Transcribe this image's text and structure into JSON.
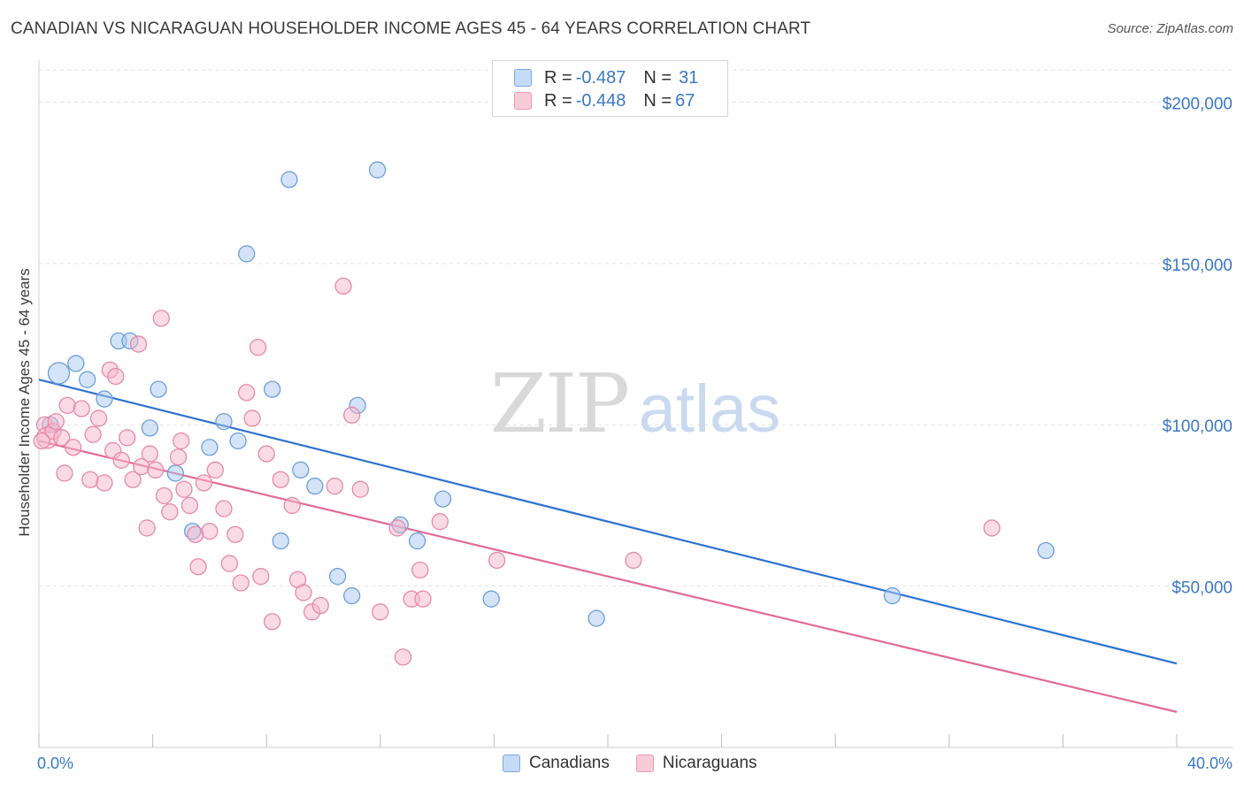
{
  "title": "CANADIAN VS NICARAGUAN HOUSEHOLDER INCOME AGES 45 - 64 YEARS CORRELATION CHART",
  "source": "Source: ZipAtlas.com",
  "watermark": {
    "part1": "ZIP",
    "part2": "atlas"
  },
  "legend": {
    "rows": [
      {
        "r_label": "R = ",
        "r_value": "-0.487",
        "n_label": "N = ",
        "n_value": "31",
        "color": "#a9c8f0"
      },
      {
        "r_label": "R = ",
        "r_value": "-0.448",
        "n_label": "N = ",
        "n_value": "67",
        "color": "#f5b6ca"
      }
    ]
  },
  "bottom_legend": {
    "canadians": "Canadians",
    "nicaraguans": "Nicaraguans"
  },
  "chart_data": {
    "type": "scatter",
    "ylabel": "Householder Income Ages 45 - 64 years",
    "xlim": [
      0,
      40
    ],
    "ylim": [
      0,
      210000
    ],
    "x_tick_labels": [
      "0.0%",
      "40.0%"
    ],
    "y_ticks": [
      50000,
      100000,
      150000,
      200000
    ],
    "y_tick_labels": [
      "$50,000",
      "$100,000",
      "$150,000",
      "$200,000"
    ],
    "grid": true,
    "colors": {
      "canadians_fill": "#a9c8f0",
      "canadians_stroke": "#6d9fdc",
      "canadians_line": "#2f72d0",
      "nicaraguans_fill": "#f5b6ca",
      "nicaraguans_stroke": "#e68aa8",
      "nicaraguans_line": "#e06b97"
    },
    "series": [
      {
        "name": "Canadians",
        "trend": [
          [
            0,
            114000
          ],
          [
            40,
            26000
          ]
        ],
        "points": [
          [
            0.7,
            116000
          ],
          [
            0.4,
            100000
          ],
          [
            1.3,
            119000
          ],
          [
            1.7,
            114000
          ],
          [
            2.3,
            108000
          ],
          [
            2.8,
            126000
          ],
          [
            3.2,
            126000
          ],
          [
            4.2,
            111000
          ],
          [
            3.9,
            99000
          ],
          [
            4.8,
            85000
          ],
          [
            5.4,
            67000
          ],
          [
            6.0,
            93000
          ],
          [
            6.5,
            101000
          ],
          [
            7.0,
            95000
          ],
          [
            7.3,
            153000
          ],
          [
            8.2,
            111000
          ],
          [
            8.5,
            64000
          ],
          [
            8.8,
            176000
          ],
          [
            9.2,
            86000
          ],
          [
            9.7,
            81000
          ],
          [
            10.5,
            53000
          ],
          [
            11.0,
            47000
          ],
          [
            11.2,
            106000
          ],
          [
            11.9,
            179000
          ],
          [
            12.7,
            69000
          ],
          [
            13.3,
            64000
          ],
          [
            14.2,
            77000
          ],
          [
            15.9,
            46000
          ],
          [
            19.6,
            40000
          ],
          [
            30.0,
            47000
          ],
          [
            35.4,
            61000
          ]
        ]
      },
      {
        "name": "Nicaraguans",
        "trend": [
          [
            0,
            95000
          ],
          [
            40,
            11000
          ]
        ],
        "points": [
          [
            0.2,
            100000
          ],
          [
            0.3,
            96000
          ],
          [
            0.5,
            98000
          ],
          [
            0.6,
            101000
          ],
          [
            0.8,
            96000
          ],
          [
            0.9,
            85000
          ],
          [
            1.0,
            106000
          ],
          [
            1.2,
            93000
          ],
          [
            1.5,
            105000
          ],
          [
            1.8,
            83000
          ],
          [
            1.9,
            97000
          ],
          [
            2.1,
            102000
          ],
          [
            2.3,
            82000
          ],
          [
            2.5,
            117000
          ],
          [
            2.6,
            92000
          ],
          [
            2.7,
            115000
          ],
          [
            2.9,
            89000
          ],
          [
            3.1,
            96000
          ],
          [
            3.3,
            83000
          ],
          [
            3.5,
            125000
          ],
          [
            3.6,
            87000
          ],
          [
            3.8,
            68000
          ],
          [
            3.9,
            91000
          ],
          [
            4.1,
            86000
          ],
          [
            4.3,
            133000
          ],
          [
            4.4,
            78000
          ],
          [
            4.6,
            73000
          ],
          [
            4.9,
            90000
          ],
          [
            5.0,
            95000
          ],
          [
            5.1,
            80000
          ],
          [
            5.3,
            75000
          ],
          [
            5.5,
            66000
          ],
          [
            5.6,
            56000
          ],
          [
            5.8,
            82000
          ],
          [
            6.0,
            67000
          ],
          [
            6.2,
            86000
          ],
          [
            6.5,
            74000
          ],
          [
            6.7,
            57000
          ],
          [
            6.9,
            66000
          ],
          [
            7.1,
            51000
          ],
          [
            7.3,
            110000
          ],
          [
            7.5,
            102000
          ],
          [
            7.7,
            124000
          ],
          [
            7.8,
            53000
          ],
          [
            8.0,
            91000
          ],
          [
            8.2,
            39000
          ],
          [
            8.5,
            83000
          ],
          [
            8.9,
            75000
          ],
          [
            9.1,
            52000
          ],
          [
            9.3,
            48000
          ],
          [
            9.6,
            42000
          ],
          [
            9.9,
            44000
          ],
          [
            10.4,
            81000
          ],
          [
            10.7,
            143000
          ],
          [
            11.0,
            103000
          ],
          [
            11.3,
            80000
          ],
          [
            12.0,
            42000
          ],
          [
            12.6,
            68000
          ],
          [
            12.8,
            28000
          ],
          [
            13.1,
            46000
          ],
          [
            13.4,
            55000
          ],
          [
            13.5,
            46000
          ],
          [
            14.1,
            70000
          ],
          [
            16.1,
            58000
          ],
          [
            20.9,
            58000
          ],
          [
            33.5,
            68000
          ],
          [
            0.1,
            95000
          ]
        ]
      }
    ]
  }
}
